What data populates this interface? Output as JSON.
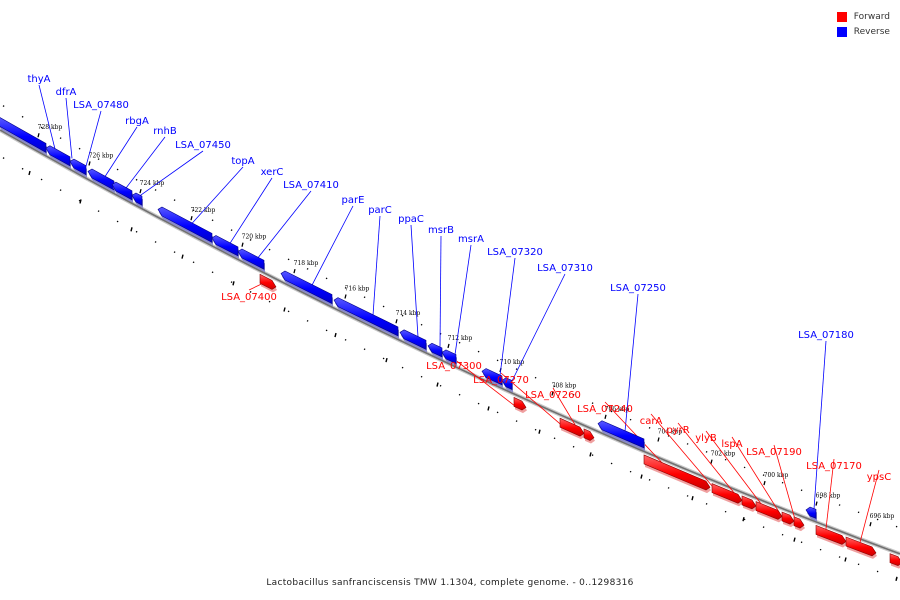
{
  "legend": {
    "forward": {
      "label": "Forward",
      "color": "#ff0000"
    },
    "reverse": {
      "label": "Reverse",
      "color": "#0000ff"
    }
  },
  "caption": "Lactobacillus sanfranciscensis TMW 1.1304, complete genome. - 0..1298316",
  "axis": {
    "tick_labels": [
      "728 kbp",
      "726 kbp",
      "724 kbp",
      "722 kbp",
      "720 kbp",
      "718 kbp",
      "716 kbp",
      "714 kbp",
      "712 kbp",
      "710 kbp",
      "708 kbp",
      "706 kbp",
      "704 kbp",
      "702 kbp",
      "700 kbp",
      "698 kbp",
      "696 kbp"
    ]
  },
  "genes_reverse": [
    {
      "name": "thyA"
    },
    {
      "name": "dfrA"
    },
    {
      "name": "LSA_07480"
    },
    {
      "name": "rbgA"
    },
    {
      "name": "rnhB"
    },
    {
      "name": "LSA_07450"
    },
    {
      "name": "topA"
    },
    {
      "name": "xerC"
    },
    {
      "name": "LSA_07410"
    },
    {
      "name": "parE"
    },
    {
      "name": "parC"
    },
    {
      "name": "ppaC"
    },
    {
      "name": "msrB"
    },
    {
      "name": "msrA"
    },
    {
      "name": "LSA_07320"
    },
    {
      "name": "LSA_07310"
    },
    {
      "name": "LSA_07250"
    },
    {
      "name": "LSA_07180"
    }
  ],
  "genes_forward": [
    {
      "name": "LSA_07400"
    },
    {
      "name": "LSA_07300"
    },
    {
      "name": "LSA_07270"
    },
    {
      "name": "LSA_07260"
    },
    {
      "name": "LSA_07240"
    },
    {
      "name": "carA"
    },
    {
      "name": "pyrR"
    },
    {
      "name": "ylyB"
    },
    {
      "name": "lspA"
    },
    {
      "name": "LSA_07190"
    },
    {
      "name": "LSA_07170"
    },
    {
      "name": "ypsC"
    }
  ]
}
